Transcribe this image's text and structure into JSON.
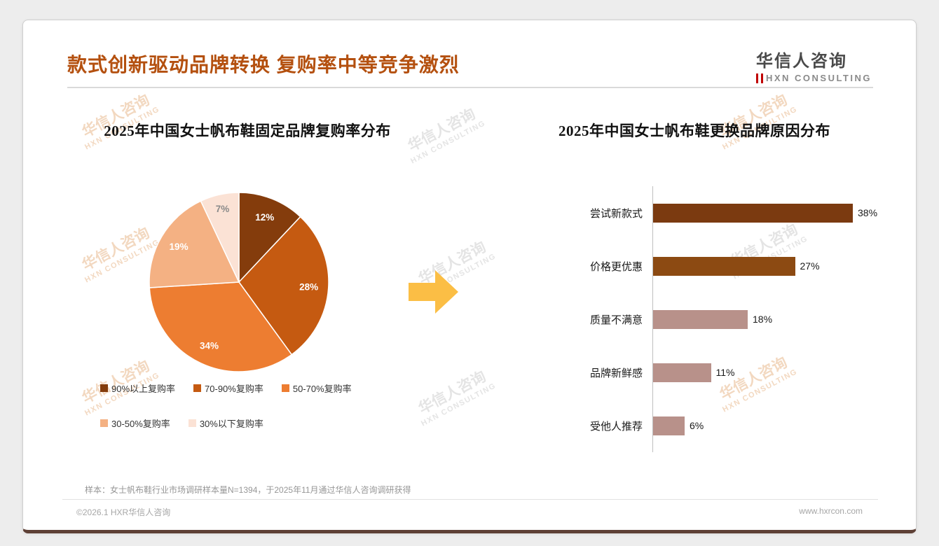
{
  "slide": {
    "title": "款式创新驱动品牌转换 复购率中等竞争激烈",
    "accent_color": "#B4500F",
    "logo": {
      "name": "华信人咨询",
      "subtitle": "HXN CONSULTING"
    },
    "watermark": {
      "line1": "华信人咨询",
      "line2": "HXN CONSULTING"
    },
    "transition_arrow": {
      "icon": "arrow-right",
      "color": "#FBBE45"
    },
    "sample_note": "样本：女士帆布鞋行业市场调研样本量N=1394，于2025年11月通过华信人咨询调研获得",
    "footer": {
      "copyright": "©2026.1 HXR华信人咨询",
      "website": "www.hxrcon.com"
    }
  },
  "chart_data": [
    {
      "type": "pie",
      "title": "2025年中国女士帆布鞋固定品牌复购率分布",
      "labels": [
        "90%以上复购率",
        "70-90%复购率",
        "50-70%复购率",
        "30-50%复购率",
        "30%以下复购率"
      ],
      "values": [
        12,
        28,
        34,
        19,
        7
      ],
      "data_labels": [
        "12%",
        "28%",
        "34%",
        "19%",
        "7%"
      ],
      "colors": [
        "#843C0C",
        "#C55A11",
        "#ED7D31",
        "#F4B183",
        "#FBE2D5"
      ],
      "label_colors": [
        "#FFFFFF",
        "#FFFFFF",
        "#FFFFFF",
        "#FFFFFF",
        "#8A8A8A"
      ],
      "start_angle_deg": -90,
      "direction": "clockwise",
      "legend_position": "bottom"
    },
    {
      "type": "bar",
      "orientation": "horizontal",
      "title": "2025年中国女士帆布鞋更换品牌原因分布",
      "categories": [
        "尝试新款式",
        "价格更优惠",
        "质量不满意",
        "品牌新鲜感",
        "受他人推荐"
      ],
      "values": [
        38,
        27,
        18,
        11,
        6
      ],
      "data_labels": [
        "38%",
        "27%",
        "18%",
        "11%",
        "6%"
      ],
      "colors": [
        "#7B3A10",
        "#8C4A12",
        "#B8918A",
        "#B8918A",
        "#B8918A"
      ],
      "xlim": [
        0,
        40
      ],
      "grid": false,
      "legend_position": "none"
    }
  ]
}
